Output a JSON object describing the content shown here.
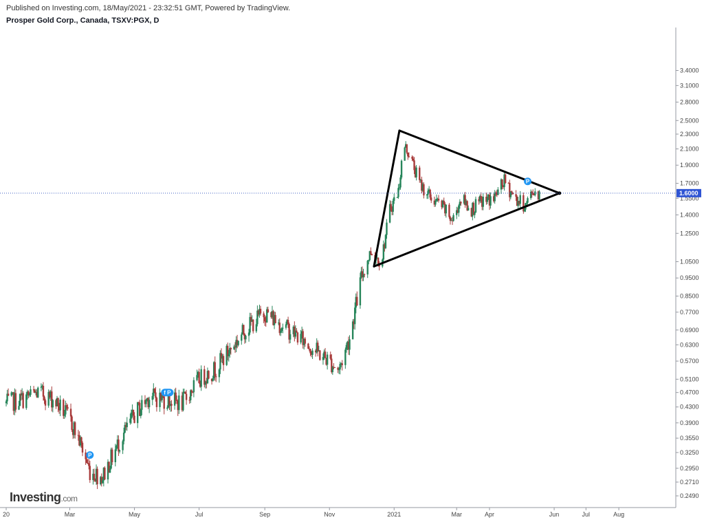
{
  "header": {
    "published": "Published on Investing.com, 18/May/2021 - 23:32:51 GMT, Powered by TradingView.",
    "symbol": "Prosper Gold Corp., Canada, TSXV:PGX, D"
  },
  "logo": {
    "name": "Investing",
    "suffix": ".com"
  },
  "colors": {
    "up": "#26855a",
    "down": "#a83a3a",
    "last_price_line": "#3d5fc4",
    "last_price_label": "#2f55d4",
    "marker": "#2196f3",
    "trendline": "#000000"
  },
  "chart_data": {
    "type": "candlestick",
    "title": "Prosper Gold Corp., Canada, TSXV:PGX, D",
    "scale": "log",
    "ylim": [
      0.24,
      3.5
    ],
    "xlim": [
      "2020-01-01",
      "2021-08-31"
    ],
    "y_ticks": [
      "3.4000",
      "3.1000",
      "2.8000",
      "2.5000",
      "2.3000",
      "2.1000",
      "1.9000",
      "1.7000",
      "1.5500",
      "1.4000",
      "1.2500",
      "1.0500",
      "0.9500",
      "0.8500",
      "0.7700",
      "0.6900",
      "0.6300",
      "0.5700",
      "0.5100",
      "0.4700",
      "0.4300",
      "0.3900",
      "0.3550",
      "0.3250",
      "0.2950",
      "0.2710",
      "0.2490"
    ],
    "x_ticks": [
      {
        "label": "20",
        "date": "2020-01-01"
      },
      {
        "label": "Mar",
        "date": "2020-03-01"
      },
      {
        "label": "May",
        "date": "2020-05-01"
      },
      {
        "label": "Jul",
        "date": "2020-07-01"
      },
      {
        "label": "Sep",
        "date": "2020-09-01"
      },
      {
        "label": "Nov",
        "date": "2020-11-01"
      },
      {
        "label": "2021",
        "date": "2021-01-01"
      },
      {
        "label": "Mar",
        "date": "2021-03-01"
      },
      {
        "label": "Apr",
        "date": "2021-04-01"
      },
      {
        "label": "Jun",
        "date": "2021-06-01"
      },
      {
        "label": "Jul",
        "date": "2021-07-01"
      },
      {
        "label": "Aug",
        "date": "2021-08-01"
      }
    ],
    "last_price": 1.6,
    "last_price_label": "1.6000",
    "price_path": [
      [
        "2020-01-01",
        0.44
      ],
      [
        "2020-01-15",
        0.45
      ],
      [
        "2020-02-01",
        0.47
      ],
      [
        "2020-02-15",
        0.45
      ],
      [
        "2020-03-01",
        0.4
      ],
      [
        "2020-03-10",
        0.35
      ],
      [
        "2020-03-20",
        0.29
      ],
      [
        "2020-04-01",
        0.28
      ],
      [
        "2020-04-15",
        0.34
      ],
      [
        "2020-05-01",
        0.41
      ],
      [
        "2020-05-15",
        0.46
      ],
      [
        "2020-06-01",
        0.45
      ],
      [
        "2020-06-15",
        0.44
      ],
      [
        "2020-07-01",
        0.51
      ],
      [
        "2020-07-15",
        0.54
      ],
      [
        "2020-08-01",
        0.62
      ],
      [
        "2020-08-15",
        0.7
      ],
      [
        "2020-09-01",
        0.77
      ],
      [
        "2020-09-15",
        0.72
      ],
      [
        "2020-10-01",
        0.67
      ],
      [
        "2020-10-15",
        0.62
      ],
      [
        "2020-11-01",
        0.57
      ],
      [
        "2020-11-10",
        0.54
      ],
      [
        "2020-11-20",
        0.66
      ],
      [
        "2020-12-01",
        0.95
      ],
      [
        "2020-12-10",
        1.12
      ],
      [
        "2020-12-20",
        1.05
      ],
      [
        "2020-12-28",
        1.45
      ],
      [
        "2021-01-05",
        1.62
      ],
      [
        "2021-01-10",
        2.15
      ],
      [
        "2021-01-15",
        2.05
      ],
      [
        "2021-01-25",
        1.7
      ],
      [
        "2021-02-05",
        1.55
      ],
      [
        "2021-02-15",
        1.48
      ],
      [
        "2021-02-25",
        1.35
      ],
      [
        "2021-03-05",
        1.55
      ],
      [
        "2021-03-15",
        1.45
      ],
      [
        "2021-03-25",
        1.52
      ],
      [
        "2021-04-05",
        1.55
      ],
      [
        "2021-04-15",
        1.72
      ],
      [
        "2021-04-25",
        1.55
      ],
      [
        "2021-05-05",
        1.48
      ],
      [
        "2021-05-12",
        1.62
      ],
      [
        "2021-05-18",
        1.6
      ]
    ],
    "trendlines": [
      {
        "name": "upper",
        "from": [
          "2021-01-06",
          2.35
        ],
        "to": [
          "2021-06-06",
          1.6
        ]
      },
      {
        "name": "lower",
        "from": [
          "2020-12-13",
          1.02
        ],
        "to": [
          "2021-06-06",
          1.6
        ]
      },
      {
        "name": "left",
        "from": [
          "2021-01-06",
          2.35
        ],
        "to": [
          "2020-12-13",
          1.02
        ]
      }
    ],
    "markers": [
      {
        "label": "P",
        "date": "2020-03-20",
        "price": 0.32
      },
      {
        "label": "f P",
        "date": "2020-06-01",
        "price": 0.47
      },
      {
        "label": "P",
        "date": "2021-05-07",
        "price": 1.72
      }
    ]
  }
}
